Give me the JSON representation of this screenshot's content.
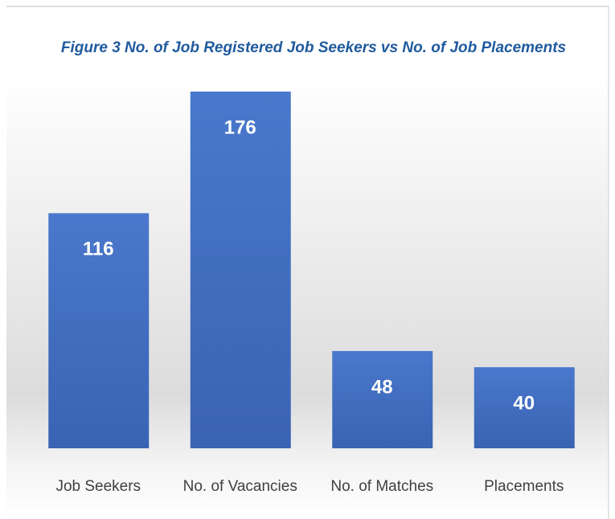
{
  "chart_data": {
    "type": "bar",
    "title": "Figure 3 No. of Job Registered Job Seekers vs No. of Job Placements",
    "categories": [
      "Job Seekers",
      "No. of Vacancies",
      "No. of Matches",
      "Placements"
    ],
    "values": [
      116,
      176,
      48,
      40
    ],
    "color": "#4472c4"
  }
}
